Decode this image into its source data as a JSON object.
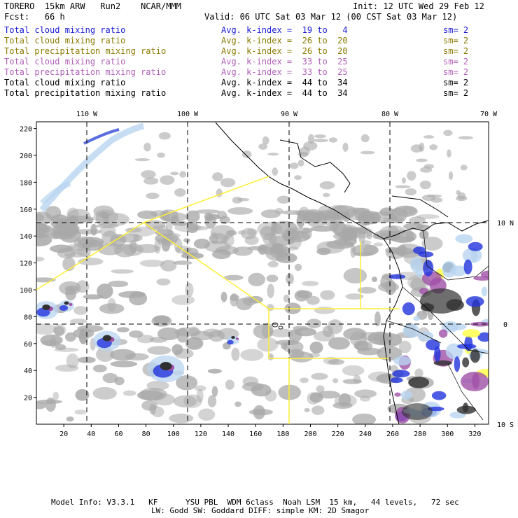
{
  "header": {
    "title": "TORERO  15km ARW   Run2    NCAR/MMM",
    "init": "Init: 12 UTC Wed 29 Feb 12",
    "fcst": "Fcst:   66 h",
    "valid": "Valid: 06 UTC Sat 03 Mar 12 (00 CST Sat 03 Mar 12)"
  },
  "legend": [
    {
      "field": "Total cloud mixing ratio",
      "kindex": "Avg. k-index =  19 to   4",
      "sm": "sm= 2",
      "color": "#1a1ad6"
    },
    {
      "field": "Total cloud mixing ratio",
      "kindex": "Avg. k-index =  26 to  20",
      "sm": "sm= 2",
      "color": "#8a7a00"
    },
    {
      "field": "Total precipitation mixing ratio",
      "kindex": "Avg. k-index =  26 to  20",
      "sm": "sm= 2",
      "color": "#8a7a00"
    },
    {
      "field": "Total cloud mixing ratio",
      "kindex": "Avg. k-index =  33 to  25",
      "sm": "sm= 2",
      "color": "#b060b8"
    },
    {
      "field": "Total precipitation mixing ratio",
      "kindex": "Avg. k-index =  33 to  25",
      "sm": "sm= 2",
      "color": "#b060b8"
    },
    {
      "field": "Total cloud mixing ratio",
      "kindex": "Avg. k-index =  44 to  34",
      "sm": "sm= 2",
      "color": "#000000"
    },
    {
      "field": "Total precipitation mixing ratio",
      "kindex": "Avg. k-index =  44 to  34",
      "sm": "sm= 2",
      "color": "#000000"
    }
  ],
  "axes": {
    "lon_labels": [
      "110 W",
      "100 W",
      "90 W",
      "80 W",
      "70 W"
    ],
    "lat_labels": [
      "10 N",
      "0",
      "10 S"
    ],
    "x_ticks": [
      "20",
      "40",
      "60",
      "80",
      "100",
      "120",
      "140",
      "160",
      "180",
      "200",
      "220",
      "240",
      "260",
      "280",
      "300",
      "320"
    ],
    "y_ticks": [
      "220",
      "200",
      "180",
      "160",
      "140",
      "120",
      "100",
      "80",
      "60",
      "40",
      "20"
    ]
  },
  "footer": {
    "line1": "Model Info: V3.3.1   KF      YSU PBL  WDM 6class  Noah LSM  15 km,   44 levels,   72 sec",
    "line2": "LW: Godd SW: Goddard DIFF: simple KM: 2D Smagor"
  },
  "colors": {
    "grey_cloud": "#a8a8a8",
    "light_blue": "#b8d4f0",
    "blue": "#2233dd",
    "purple": "#a050a8",
    "yellow": "#ffff40",
    "dark": "#303030",
    "boundary": "#ffee33"
  }
}
